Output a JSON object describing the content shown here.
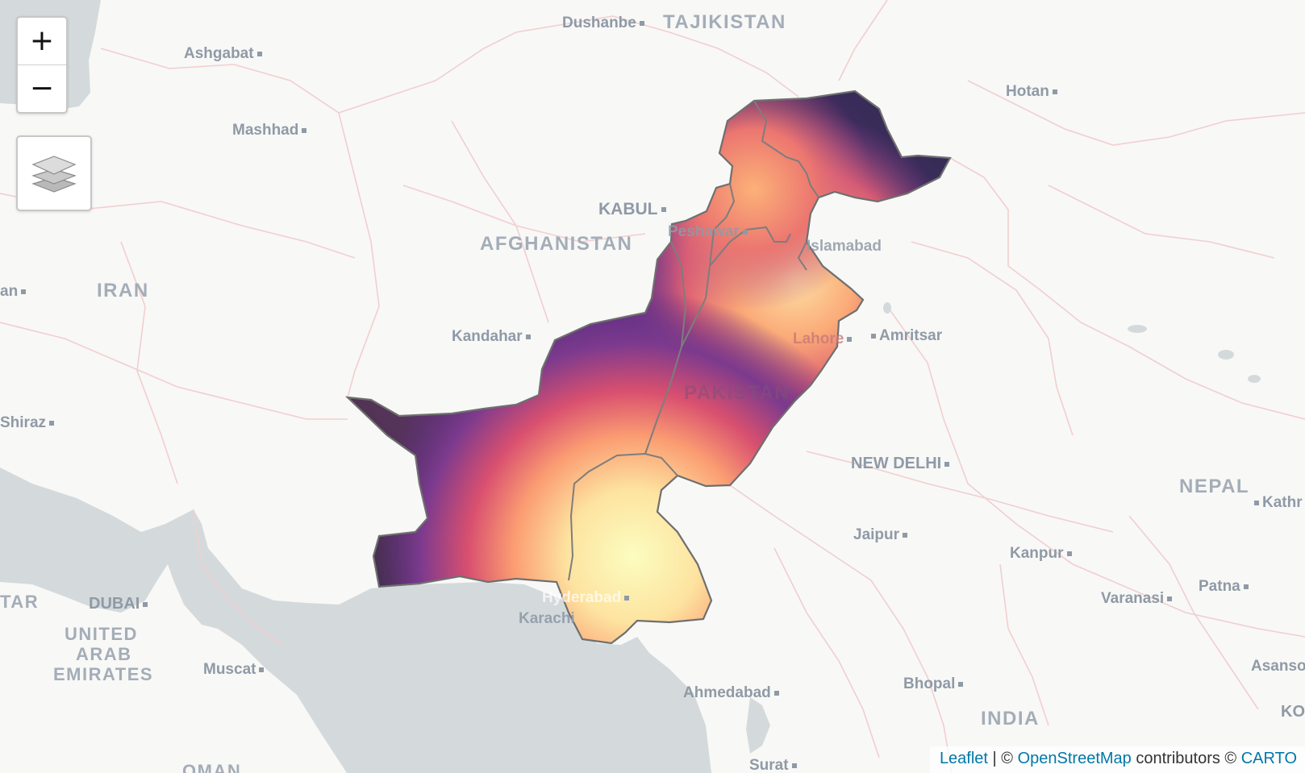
{
  "map": {
    "colors": {
      "land": "#f8f8f7",
      "water": "#d4dadc",
      "borders": "#f0c9c9",
      "country_outline": "#7a7a7a"
    },
    "heat_colors": [
      "#0a0a0a",
      "#5a2b82",
      "#e8626a",
      "#fcac74",
      "#fcfdbf"
    ],
    "country_labels": {
      "tajikistan": "TAJIKISTAN",
      "afghanistan": "AFGHANISTAN",
      "iran": "IRAN",
      "pakistan": "PAKISTAN",
      "india": "INDIA",
      "nepal": "NEPAL",
      "uae_1": "UNITED",
      "uae_2": "ARAB",
      "uae_3": "EMIRATES",
      "qatar_partial": "TAR",
      "oman": "OMAN"
    },
    "cities": {
      "dushanbe": "Dushanbe",
      "ashgabat": "Ashgabat",
      "mashhad": "Mashhad",
      "hotan": "Hotan",
      "kabul": "KABUL",
      "peshawar": "Peshawar",
      "islamabad": "Islamabad",
      "tehran_partial": "an",
      "kandahar": "Kandahar",
      "lahore": "Lahore",
      "amritsar": "Amritsar",
      "shiraz": "Shiraz",
      "new_delhi": "NEW DELHI",
      "jaipur": "Jaipur",
      "kanpur": "Kanpur",
      "kathmandu_partial": "Kathr",
      "dubai": "DUBAI",
      "hyderabad": "Hyderabad",
      "karachi": "Karachi",
      "varanasi": "Varanasi",
      "patna": "Patna",
      "muscat": "Muscat",
      "asansol_partial": "Asanso",
      "kolkata_partial": "KO",
      "ahmedabad": "Ahmedabad",
      "bhopal": "Bhopal",
      "surat": "Surat"
    }
  },
  "controls": {
    "zoom_in": "+",
    "zoom_out": "−",
    "layers_icon": "layers-icon"
  },
  "attribution": {
    "leaflet": "Leaflet",
    "sep": " | © ",
    "osm": "OpenStreetMap",
    "contributors": " contributors © ",
    "carto": "CARTO"
  }
}
